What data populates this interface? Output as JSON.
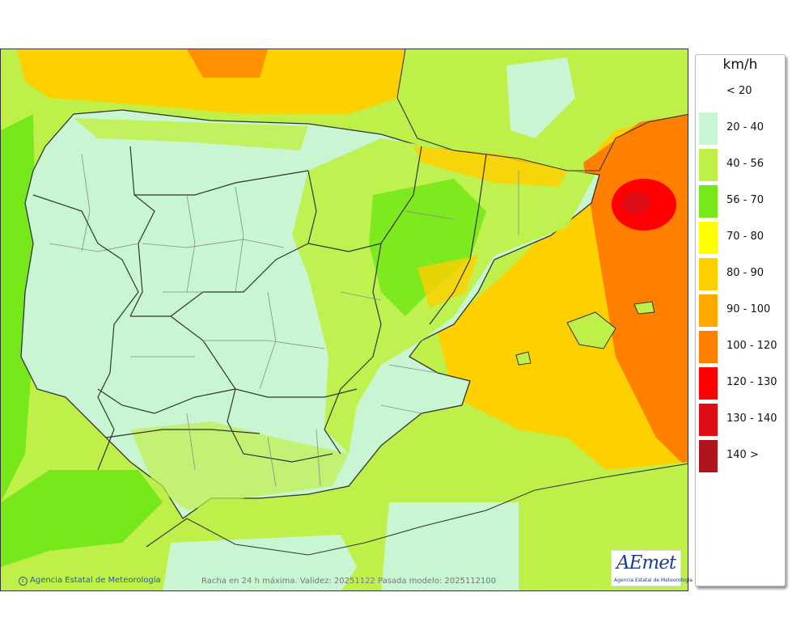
{
  "legend": {
    "unit": "km/h",
    "items": [
      {
        "label": "< 20",
        "color": "#ffffff"
      },
      {
        "label": "20 - 40",
        "color": "#c8f5d2"
      },
      {
        "label": "40 - 56",
        "color": "#bff04a"
      },
      {
        "label": "56 - 70",
        "color": "#77e81a"
      },
      {
        "label": "70 - 80",
        "color": "#ffff00"
      },
      {
        "label": "80 - 90",
        "color": "#ffd000"
      },
      {
        "label": "90 - 100",
        "color": "#ffa800"
      },
      {
        "label": "100 - 120",
        "color": "#ff8000"
      },
      {
        "label": "120 - 130",
        "color": "#ff0000"
      },
      {
        "label": "130 - 140",
        "color": "#dd0c15"
      },
      {
        "label": "140 >",
        "color": "#b0151e"
      }
    ]
  },
  "footer": {
    "credit": "Agencia Estatal de Meteorología",
    "caption": "Racha en 24 h máxima. Validez: 20251122 Pasada modelo: 2025112100"
  },
  "logo": {
    "mark": "AEmet",
    "subtitle": "Agencia Estatal de Meteorología"
  },
  "colors": {
    "land_low": "#c8f5d2",
    "land_mid": "#bff04a",
    "sea_band": "#77e81a",
    "sea_high": "#ffa800",
    "sea_very_high": "#ff8000",
    "extreme": "#ff0000",
    "border": "#333333",
    "province_border": "#8a8a8a"
  }
}
